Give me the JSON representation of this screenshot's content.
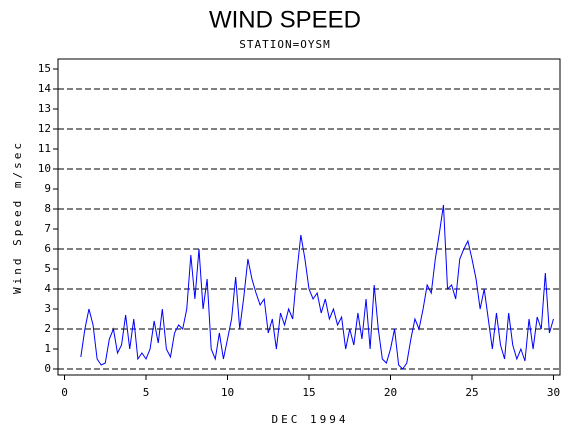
{
  "chart_data": {
    "type": "line",
    "title": "WIND SPEED",
    "subtitle": "STATION=OYSM",
    "x_label": "DEC 1994",
    "y_label": "Wind Speed m/sec",
    "xlim": [
      -0.4,
      30.4
    ],
    "xticks": [
      0,
      5,
      10,
      15,
      20,
      25,
      30
    ],
    "ylim": [
      -0.3,
      15.5
    ],
    "yticks": [
      0,
      1,
      2,
      3,
      4,
      5,
      6,
      7,
      8,
      9,
      10,
      11,
      12,
      13,
      14,
      15
    ],
    "grid_y": [
      0,
      2,
      4,
      6,
      8,
      10,
      12,
      14
    ],
    "grid_style": "dashed",
    "series": [
      {
        "color": "#0000ff",
        "x": [
          1,
          1.25,
          1.5,
          1.75,
          2,
          2.25,
          2.5,
          2.75,
          3,
          3.25,
          3.5,
          3.75,
          4,
          4.25,
          4.5,
          4.75,
          5,
          5.25,
          5.5,
          5.75,
          6,
          6.25,
          6.5,
          6.75,
          7,
          7.25,
          7.5,
          7.75,
          8,
          8.25,
          8.5,
          8.75,
          9,
          9.25,
          9.5,
          9.75,
          10,
          10.25,
          10.5,
          10.75,
          11,
          11.25,
          11.5,
          11.75,
          12,
          12.25,
          12.5,
          12.75,
          13,
          13.25,
          13.5,
          13.75,
          14,
          14.25,
          14.5,
          14.75,
          15,
          15.25,
          15.5,
          15.75,
          16,
          16.25,
          16.5,
          16.75,
          17,
          17.25,
          17.5,
          17.75,
          18,
          18.25,
          18.5,
          18.75,
          19,
          19.25,
          19.5,
          19.75,
          20,
          20.25,
          20.5,
          20.75,
          21,
          21.25,
          21.5,
          21.75,
          22,
          22.25,
          22.5,
          22.75,
          23,
          23.25,
          23.5,
          23.75,
          24,
          24.25,
          24.5,
          24.75,
          25,
          25.25,
          25.5,
          25.75,
          26,
          26.25,
          26.5,
          26.75,
          27,
          27.25,
          27.5,
          27.75,
          28,
          28.25,
          28.5,
          28.75,
          29,
          29.25,
          29.5,
          29.75,
          30
        ],
        "values": [
          0.6,
          2.0,
          3.0,
          2.2,
          0.5,
          0.2,
          0.3,
          1.5,
          2.0,
          0.8,
          1.2,
          2.7,
          1.0,
          2.5,
          0.5,
          0.8,
          0.5,
          1.0,
          2.4,
          1.3,
          3.0,
          1.0,
          0.6,
          1.8,
          2.2,
          2.0,
          3.0,
          5.7,
          3.5,
          6.0,
          3.0,
          4.5,
          1.0,
          0.5,
          1.8,
          0.5,
          1.5,
          2.5,
          4.6,
          2.0,
          3.6,
          5.5,
          4.5,
          3.8,
          3.2,
          3.5,
          1.8,
          2.5,
          1.0,
          2.8,
          2.2,
          3.0,
          2.5,
          4.8,
          6.7,
          5.5,
          4.0,
          3.5,
          3.8,
          2.8,
          3.5,
          2.5,
          3.0,
          2.2,
          2.6,
          1.0,
          2.0,
          1.2,
          2.8,
          1.5,
          3.5,
          1.0,
          4.2,
          2.0,
          0.5,
          0.3,
          1.0,
          2.0,
          0.2,
          0.0,
          0.3,
          1.5,
          2.5,
          2.0,
          3.0,
          4.2,
          3.8,
          5.5,
          6.8,
          8.2,
          4.0,
          4.2,
          3.5,
          5.5,
          6.0,
          6.4,
          5.5,
          4.5,
          3.0,
          4.0,
          2.5,
          1.0,
          2.8,
          1.2,
          0.5,
          2.8,
          1.2,
          0.5,
          1.0,
          0.4,
          2.5,
          1.0,
          2.6,
          2.0,
          4.8,
          1.8,
          2.5
        ]
      }
    ]
  }
}
